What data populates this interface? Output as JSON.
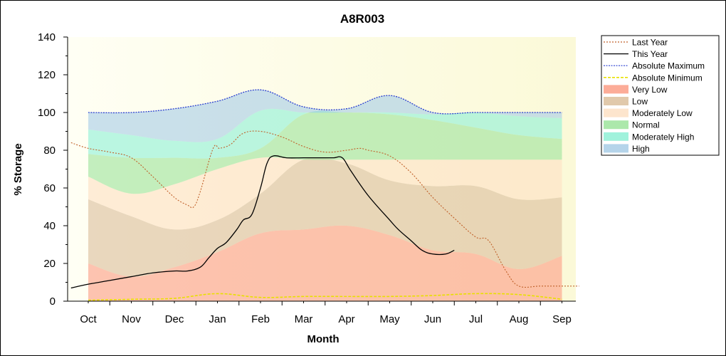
{
  "chart_data": {
    "type": "area",
    "title": "A8R003",
    "xlabel": "Month",
    "ylabel": "% Storage",
    "ylim": [
      0,
      140
    ],
    "yticks": [
      0,
      20,
      40,
      60,
      80,
      100,
      120,
      140
    ],
    "categories": [
      "Oct",
      "Nov",
      "Dec",
      "Jan",
      "Feb",
      "Mar",
      "Apr",
      "May",
      "Jun",
      "Jul",
      "Aug",
      "Sep"
    ],
    "grid": false,
    "legend_position": "right",
    "legend": [
      {
        "key": "last_year",
        "label": "Last Year",
        "kind": "line",
        "color": "#c0602a",
        "dash": "2,2"
      },
      {
        "key": "this_year",
        "label": "This Year",
        "kind": "line",
        "color": "#000000",
        "dash": ""
      },
      {
        "key": "abs_max",
        "label": "Absolute Maximum",
        "kind": "line",
        "color": "#2a3fd0",
        "dash": "2,1.5"
      },
      {
        "key": "abs_min",
        "label": "Absolute Minimum",
        "kind": "line",
        "color": "#e8e000",
        "dash": "4,2"
      },
      {
        "key": "very_low",
        "label": "Very Low",
        "kind": "area",
        "color": "#fb9e86"
      },
      {
        "key": "low",
        "label": "Low",
        "kind": "area",
        "color": "#dcbf9c"
      },
      {
        "key": "mod_low",
        "label": "Moderately Low",
        "kind": "area",
        "color": "#fde1c4"
      },
      {
        "key": "normal",
        "label": "Normal",
        "kind": "area",
        "color": "#9ee49c"
      },
      {
        "key": "mod_high",
        "label": "Moderately High",
        "kind": "area",
        "color": "#8ff0d6"
      },
      {
        "key": "high",
        "label": "High",
        "kind": "area",
        "color": "#a8cde6"
      }
    ],
    "x": [
      0,
      1,
      2,
      3,
      4,
      5,
      6,
      7,
      8,
      9,
      10,
      11
    ],
    "bands": {
      "very_low": [
        20,
        13,
        18,
        26,
        36,
        38,
        40,
        35,
        27,
        25,
        17,
        24
      ],
      "low": [
        54,
        45,
        38,
        43,
        57,
        75,
        73,
        64,
        61,
        61,
        54,
        55
      ],
      "mod_low": [
        66,
        57,
        62,
        70,
        76,
        75,
        75,
        75,
        75,
        75,
        75,
        75
      ],
      "normal": [
        78,
        76,
        76,
        76,
        81,
        99,
        100,
        99,
        96,
        92,
        88,
        86
      ],
      "mod_high": [
        91,
        88,
        85,
        86,
        101,
        100,
        100,
        100,
        99,
        100,
        98,
        97
      ],
      "high": [
        100,
        100,
        102,
        106,
        112,
        103,
        102,
        109,
        100,
        100,
        100,
        100
      ]
    },
    "series": [
      {
        "name": "Last Year",
        "x": [
          -0.4,
          0,
          0.5,
          1,
          1.5,
          2,
          2.3,
          2.45,
          2.6,
          2.9,
          3.05,
          3.3,
          3.6,
          4,
          4.5,
          5,
          5.5,
          6,
          6.3,
          6.5,
          7,
          7.5,
          8,
          8.5,
          9,
          9.3,
          9.7,
          10,
          10.5,
          11,
          11.4
        ],
        "values": [
          84,
          81,
          79,
          76,
          66,
          55,
          51,
          50,
          58,
          81,
          81,
          83,
          89,
          90,
          87,
          82,
          79,
          80,
          81,
          80,
          77,
          68,
          55,
          44,
          34,
          32,
          16,
          8,
          8,
          8,
          8
        ]
      },
      {
        "name": "This Year",
        "x": [
          -0.4,
          0,
          0.5,
          1,
          1.5,
          2,
          2.3,
          2.6,
          2.8,
          3,
          3.2,
          3.45,
          3.6,
          3.8,
          4,
          4.15,
          4.3,
          4.6,
          5,
          5.5,
          5.7,
          5.9,
          6.1,
          6.5,
          7,
          7.2,
          7.5,
          7.75,
          8,
          8.3,
          8.5
        ],
        "values": [
          7,
          9,
          11,
          13,
          15,
          16,
          16,
          18,
          23,
          28,
          31,
          38,
          43,
          46,
          60,
          73,
          77,
          76,
          76,
          76,
          76,
          76,
          69,
          56,
          43,
          38,
          32,
          27,
          25,
          25,
          27
        ]
      },
      {
        "name": "Absolute Maximum",
        "x": [
          0,
          1,
          2,
          3,
          4,
          5,
          6,
          7,
          8,
          9,
          10,
          11
        ],
        "values": [
          100,
          100,
          102,
          106,
          112,
          103,
          102,
          109,
          100,
          100,
          100,
          100
        ]
      },
      {
        "name": "Absolute Minimum",
        "x": [
          0,
          1,
          2,
          3,
          4,
          5,
          6,
          7,
          8,
          9,
          10,
          11
        ],
        "values": [
          0.5,
          1,
          1.5,
          4,
          2,
          2.5,
          2.5,
          2.5,
          3,
          4,
          3.5,
          1
        ]
      }
    ]
  }
}
